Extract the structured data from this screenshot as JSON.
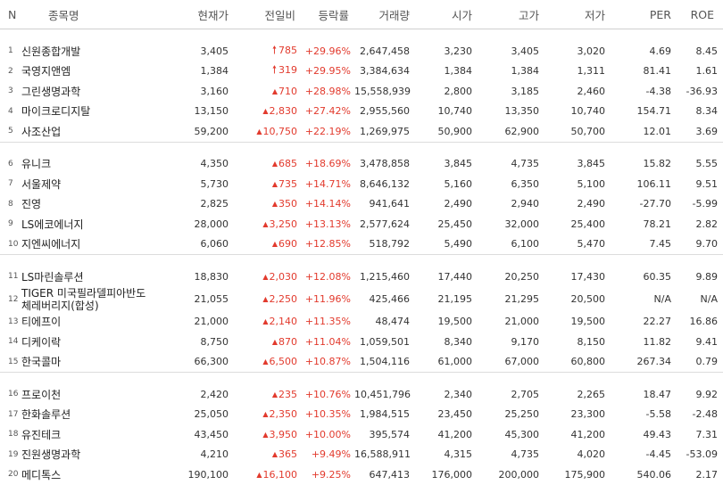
{
  "columns": [
    "N",
    "종목명",
    "현재가",
    "전일비",
    "등락률",
    "거래량",
    "시가",
    "고가",
    "저가",
    "PER",
    "ROE"
  ],
  "groups": [
    [
      {
        "n": "1",
        "name": "신원종합개발",
        "price": "3,405",
        "change": "785",
        "change_type": "upper",
        "rate": "+29.96%",
        "volume": "2,647,458",
        "open": "3,230",
        "high": "3,405",
        "low": "3,020",
        "per": "4.69",
        "roe": "8.45"
      },
      {
        "n": "2",
        "name": "국영지앤엠",
        "price": "1,384",
        "change": "319",
        "change_type": "upper",
        "rate": "+29.95%",
        "volume": "3,384,634",
        "open": "1,384",
        "high": "1,384",
        "low": "1,311",
        "per": "81.41",
        "roe": "1.61"
      },
      {
        "n": "3",
        "name": "그린생명과학",
        "price": "3,160",
        "change": "710",
        "change_type": "up",
        "rate": "+28.98%",
        "volume": "15,558,939",
        "open": "2,800",
        "high": "3,185",
        "low": "2,460",
        "per": "-4.38",
        "roe": "-36.93"
      },
      {
        "n": "4",
        "name": "마이크로디지탈",
        "price": "13,150",
        "change": "2,830",
        "change_type": "up",
        "rate": "+27.42%",
        "volume": "2,955,560",
        "open": "10,740",
        "high": "13,350",
        "low": "10,740",
        "per": "154.71",
        "roe": "8.34"
      },
      {
        "n": "5",
        "name": "사조산업",
        "price": "59,200",
        "change": "10,750",
        "change_type": "up",
        "rate": "+22.19%",
        "volume": "1,269,975",
        "open": "50,900",
        "high": "62,900",
        "low": "50,700",
        "per": "12.01",
        "roe": "3.69"
      }
    ],
    [
      {
        "n": "6",
        "name": "유니크",
        "price": "4,350",
        "change": "685",
        "change_type": "up",
        "rate": "+18.69%",
        "volume": "3,478,858",
        "open": "3,845",
        "high": "4,735",
        "low": "3,845",
        "per": "15.82",
        "roe": "5.55"
      },
      {
        "n": "7",
        "name": "서울제약",
        "price": "5,730",
        "change": "735",
        "change_type": "up",
        "rate": "+14.71%",
        "volume": "8,646,132",
        "open": "5,160",
        "high": "6,350",
        "low": "5,100",
        "per": "106.11",
        "roe": "9.51"
      },
      {
        "n": "8",
        "name": "진영",
        "price": "2,825",
        "change": "350",
        "change_type": "up",
        "rate": "+14.14%",
        "volume": "941,641",
        "open": "2,490",
        "high": "2,940",
        "low": "2,490",
        "per": "-27.70",
        "roe": "-5.99"
      },
      {
        "n": "9",
        "name": "LS에코에너지",
        "price": "28,000",
        "change": "3,250",
        "change_type": "up",
        "rate": "+13.13%",
        "volume": "2,577,624",
        "open": "25,450",
        "high": "32,000",
        "low": "25,400",
        "per": "78.21",
        "roe": "2.82"
      },
      {
        "n": "10",
        "name": "지엔씨에너지",
        "price": "6,060",
        "change": "690",
        "change_type": "up",
        "rate": "+12.85%",
        "volume": "518,792",
        "open": "5,490",
        "high": "6,100",
        "low": "5,470",
        "per": "7.45",
        "roe": "9.70"
      }
    ],
    [
      {
        "n": "11",
        "name": "LS마린솔루션",
        "price": "18,830",
        "change": "2,030",
        "change_type": "up",
        "rate": "+12.08%",
        "volume": "1,215,460",
        "open": "17,440",
        "high": "20,250",
        "low": "17,430",
        "per": "60.35",
        "roe": "9.89"
      },
      {
        "n": "12",
        "name": "TIGER 미국필라델피아반도체레버리지(합성)",
        "name_line1": "TIGER 미국필라델피아반도",
        "name_line2": "체레버리지(합성)",
        "price": "21,055",
        "change": "2,250",
        "change_type": "up",
        "rate": "+11.96%",
        "volume": "425,466",
        "open": "21,195",
        "high": "21,295",
        "low": "20,500",
        "per": "N/A",
        "roe": "N/A"
      },
      {
        "n": "13",
        "name": "티에프이",
        "price": "21,000",
        "change": "2,140",
        "change_type": "up",
        "rate": "+11.35%",
        "volume": "48,474",
        "open": "19,500",
        "high": "21,000",
        "low": "19,500",
        "per": "22.27",
        "roe": "16.86"
      },
      {
        "n": "14",
        "name": "디케이락",
        "price": "8,750",
        "change": "870",
        "change_type": "up",
        "rate": "+11.04%",
        "volume": "1,059,501",
        "open": "8,340",
        "high": "9,170",
        "low": "8,150",
        "per": "11.82",
        "roe": "9.41"
      },
      {
        "n": "15",
        "name": "한국콜마",
        "price": "66,300",
        "change": "6,500",
        "change_type": "up",
        "rate": "+10.87%",
        "volume": "1,504,116",
        "open": "61,000",
        "high": "67,000",
        "low": "60,800",
        "per": "267.34",
        "roe": "0.79"
      }
    ],
    [
      {
        "n": "16",
        "name": "프로이천",
        "price": "2,420",
        "change": "235",
        "change_type": "up",
        "rate": "+10.76%",
        "volume": "10,451,796",
        "open": "2,340",
        "high": "2,705",
        "low": "2,265",
        "per": "18.47",
        "roe": "9.92"
      },
      {
        "n": "17",
        "name": "한화솔루션",
        "price": "25,050",
        "change": "2,350",
        "change_type": "up",
        "rate": "+10.35%",
        "volume": "1,984,515",
        "open": "23,450",
        "high": "25,250",
        "low": "23,300",
        "per": "-5.58",
        "roe": "-2.48"
      },
      {
        "n": "18",
        "name": "유진테크",
        "price": "43,450",
        "change": "3,950",
        "change_type": "up",
        "rate": "+10.00%",
        "volume": "395,574",
        "open": "41,200",
        "high": "45,300",
        "low": "41,200",
        "per": "49.43",
        "roe": "7.31"
      },
      {
        "n": "19",
        "name": "진원생명과학",
        "price": "4,210",
        "change": "365",
        "change_type": "up",
        "rate": "+9.49%",
        "volume": "16,588,911",
        "open": "4,315",
        "high": "4,735",
        "low": "4,020",
        "per": "-4.45",
        "roe": "-53.09"
      },
      {
        "n": "20",
        "name": "메디톡스",
        "price": "190,100",
        "change": "16,100",
        "change_type": "up",
        "rate": "+9.25%",
        "volume": "647,413",
        "open": "176,000",
        "high": "200,000",
        "low": "175,900",
        "per": "540.06",
        "roe": "2.17"
      }
    ]
  ],
  "colors": {
    "up": "#e23a2d",
    "text": "#333333",
    "header": "#555555",
    "line": "#cfcfcf"
  }
}
